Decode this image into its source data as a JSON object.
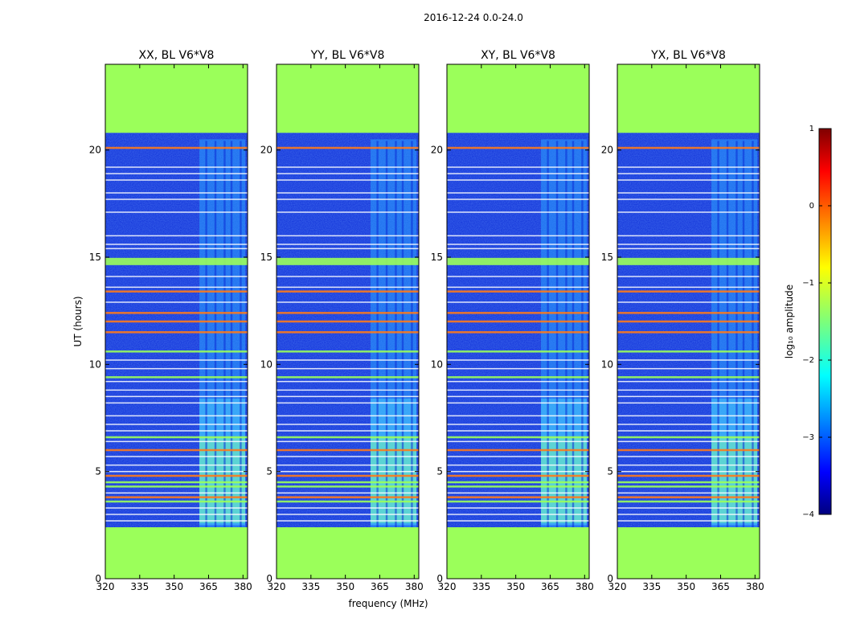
{
  "figure_title": "2016-12-24 0.0-24.0",
  "colors": {
    "no_data": "#9bff5a",
    "background_low": "#0b2bd6",
    "background_mid": "#1060ee"
  },
  "chart_data": [
    {
      "type": "heatmap",
      "title": "XX, BL V6*V8",
      "xlabel": "",
      "ylabel": "UT (hours)",
      "xlim": [
        320,
        382
      ],
      "ylim": [
        0,
        24
      ],
      "xticks": [
        "320",
        "335",
        "350",
        "365",
        "380"
      ],
      "yticks": [
        "0",
        "5",
        "10",
        "15",
        "20"
      ],
      "data_range_hours": [
        2.4,
        20.8
      ],
      "active_band_mhz": [
        361,
        381
      ]
    },
    {
      "type": "heatmap",
      "title": "YY, BL V6*V8",
      "xlabel": "frequency (MHz)",
      "ylabel": "",
      "xlim": [
        320,
        382
      ],
      "ylim": [
        0,
        24
      ],
      "xticks": [
        "320",
        "335",
        "350",
        "365",
        "380"
      ],
      "yticks": [
        "0",
        "5",
        "10",
        "15",
        "20"
      ],
      "data_range_hours": [
        2.4,
        20.8
      ],
      "active_band_mhz": [
        361,
        381
      ]
    },
    {
      "type": "heatmap",
      "title": "XY, BL V6*V8",
      "xlabel": "",
      "ylabel": "",
      "xlim": [
        320,
        382
      ],
      "ylim": [
        0,
        24
      ],
      "xticks": [
        "320",
        "335",
        "350",
        "365",
        "380"
      ],
      "yticks": [
        "0",
        "5",
        "10",
        "15",
        "20"
      ],
      "data_range_hours": [
        2.4,
        20.8
      ],
      "active_band_mhz": [
        361,
        381
      ]
    },
    {
      "type": "heatmap",
      "title": "YX, BL V6*V8",
      "xlabel": "",
      "ylabel": "",
      "xlim": [
        320,
        382
      ],
      "ylim": [
        0,
        24
      ],
      "xticks": [
        "320",
        "335",
        "350",
        "365",
        "380"
      ],
      "yticks": [
        "0",
        "5",
        "10",
        "15",
        "20"
      ],
      "data_range_hours": [
        2.4,
        20.8
      ],
      "active_band_mhz": [
        361,
        381
      ]
    }
  ],
  "colorbar": {
    "label": "log₁₀ amplitude",
    "range": [
      -4,
      1
    ],
    "ticks": [
      "1",
      "0",
      "−1",
      "−2",
      "−3",
      "−4"
    ]
  },
  "flagged_rows_hours": [
    {
      "t": 20.1,
      "level": "orange"
    },
    {
      "t": 19.2,
      "level": "white"
    },
    {
      "t": 18.9,
      "level": "white"
    },
    {
      "t": 18.6,
      "level": "white"
    },
    {
      "t": 18.0,
      "level": "white"
    },
    {
      "t": 17.7,
      "level": "white"
    },
    {
      "t": 17.1,
      "level": "white"
    },
    {
      "t": 16.0,
      "level": "white"
    },
    {
      "t": 15.6,
      "level": "white"
    },
    {
      "t": 15.4,
      "level": "white"
    },
    {
      "t": 14.8,
      "level": "green_band"
    },
    {
      "t": 14.1,
      "level": "white"
    },
    {
      "t": 13.6,
      "level": "white"
    },
    {
      "t": 13.4,
      "level": "orange"
    },
    {
      "t": 12.9,
      "level": "white"
    },
    {
      "t": 12.4,
      "level": "orange"
    },
    {
      "t": 12.0,
      "level": "orange"
    },
    {
      "t": 11.5,
      "level": "orange"
    },
    {
      "t": 10.6,
      "level": "green"
    },
    {
      "t": 10.2,
      "level": "white"
    },
    {
      "t": 9.8,
      "level": "white"
    },
    {
      "t": 9.4,
      "level": "green"
    },
    {
      "t": 9.2,
      "level": "white"
    },
    {
      "t": 8.8,
      "level": "white"
    },
    {
      "t": 8.5,
      "level": "white"
    },
    {
      "t": 8.2,
      "level": "white"
    },
    {
      "t": 7.6,
      "level": "white"
    },
    {
      "t": 7.2,
      "level": "white"
    },
    {
      "t": 6.9,
      "level": "white"
    },
    {
      "t": 6.6,
      "level": "green"
    },
    {
      "t": 6.4,
      "level": "white"
    },
    {
      "t": 6.0,
      "level": "orange"
    },
    {
      "t": 5.7,
      "level": "white"
    },
    {
      "t": 5.3,
      "level": "white"
    },
    {
      "t": 5.0,
      "level": "white"
    },
    {
      "t": 4.8,
      "level": "orange"
    },
    {
      "t": 4.5,
      "level": "green"
    },
    {
      "t": 4.3,
      "level": "green"
    },
    {
      "t": 4.0,
      "level": "white"
    },
    {
      "t": 3.8,
      "level": "orange"
    },
    {
      "t": 3.6,
      "level": "green"
    },
    {
      "t": 3.3,
      "level": "white"
    },
    {
      "t": 3.0,
      "level": "white"
    },
    {
      "t": 2.7,
      "level": "white"
    }
  ],
  "channel_stripes_mhz": [
    364,
    368,
    372,
    375,
    379
  ]
}
